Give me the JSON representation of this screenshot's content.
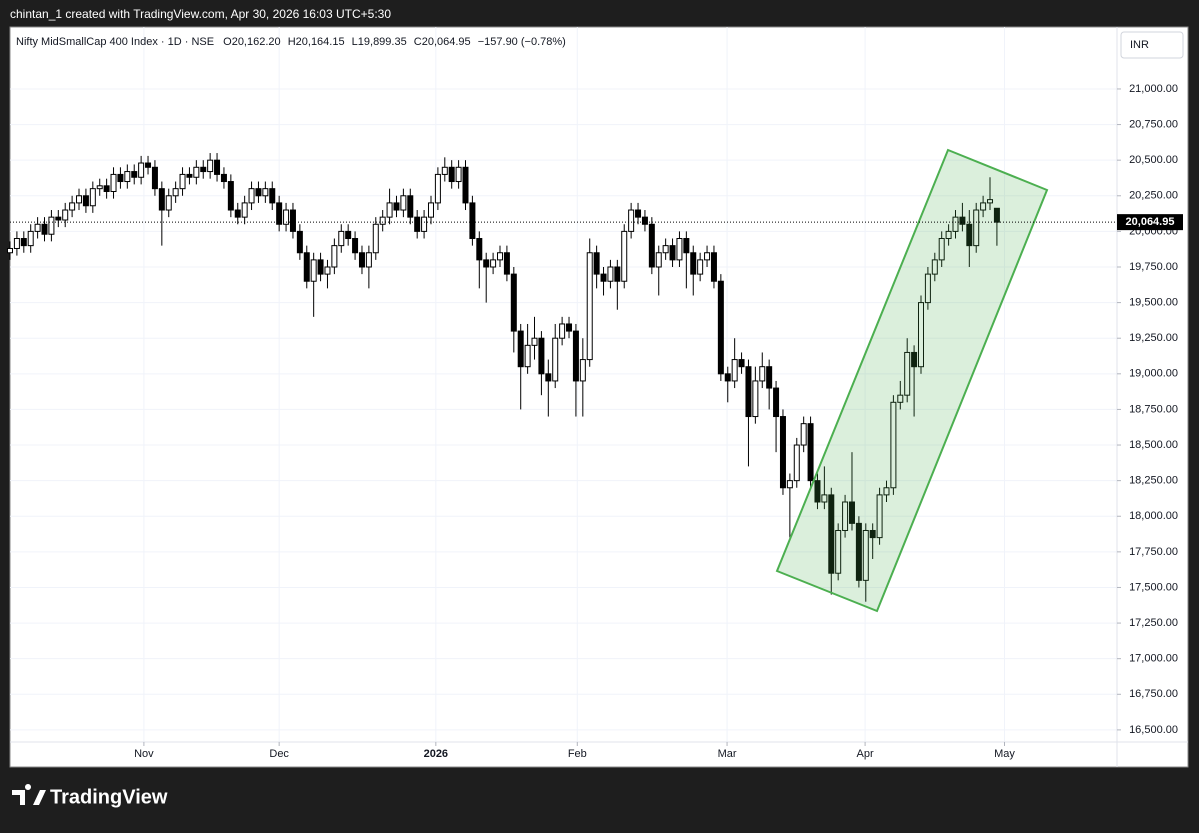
{
  "chart_data": {
    "type": "candlestick",
    "watermark": "chintan_1 created with TradingView.com, Apr 30, 2026 16:03 UTC+5:30",
    "brand": "TradingView",
    "currency": "INR",
    "header": {
      "symbol": "Nifty MidSmallCap 400 Index · 1D · NSE",
      "open": "O20,162.20",
      "high": "H20,164.15",
      "low": "L19,899.35",
      "close": "C20,064.95",
      "change": "−157.90 (−0.78%)"
    },
    "last_price": 20064.95,
    "last_price_label": "20,064.95",
    "up_color": "#ffffff",
    "down_color": "#000000",
    "border_color": "#000000",
    "channel_color": "#4caf50",
    "xlim": [
      0,
      160.4
    ],
    "xticks": [
      {
        "value": 19.4,
        "label": "Nov"
      },
      {
        "value": 39,
        "label": "Dec"
      },
      {
        "value": 61.7,
        "label": "2026"
      },
      {
        "value": 82.2,
        "label": "Feb"
      },
      {
        "value": 103.9,
        "label": "Mar"
      },
      {
        "value": 123.9,
        "label": "Apr"
      },
      {
        "value": 144.1,
        "label": "May"
      }
    ],
    "ylim": [
      16415,
      21435
    ],
    "yticks": [
      {
        "value": 16500,
        "label": "16,500.00"
      },
      {
        "value": 16750,
        "label": "16,750.00"
      },
      {
        "value": 17000,
        "label": "17,000.00"
      },
      {
        "value": 17250,
        "label": "17,250.00"
      },
      {
        "value": 17500,
        "label": "17,500.00"
      },
      {
        "value": 17750,
        "label": "17,750.00"
      },
      {
        "value": 18000,
        "label": "18,000.00"
      },
      {
        "value": 18250,
        "label": "18,250.00"
      },
      {
        "value": 18500,
        "label": "18,500.00"
      },
      {
        "value": 18750,
        "label": "18,750.00"
      },
      {
        "value": 19000,
        "label": "19,000.00"
      },
      {
        "value": 19250,
        "label": "19,250.00"
      },
      {
        "value": 19500,
        "label": "19,500.00"
      },
      {
        "value": 19750,
        "label": "19,750.00"
      },
      {
        "value": 20000,
        "label": "20,000.00"
      },
      {
        "value": 20250,
        "label": "20,250.00"
      },
      {
        "value": 20500,
        "label": "20,500.00"
      },
      {
        "value": 20750,
        "label": "20,750.00"
      },
      {
        "value": 21000,
        "label": "21,000.00"
      }
    ],
    "grid": true,
    "open": [
      19850,
      19880,
      19950,
      19900,
      20000,
      20050,
      19980,
      20100,
      20080,
      20150,
      20200,
      20250,
      20180,
      20300,
      20320,
      20280,
      20400,
      20350,
      20420,
      20380,
      20480,
      20450,
      20300,
      20150,
      20250,
      20300,
      20400,
      20380,
      20450,
      20420,
      20500,
      20400,
      20350,
      20150,
      20100,
      20200,
      20300,
      20250,
      20300,
      20200,
      20050,
      20150,
      20000,
      19850,
      19650,
      19800,
      19700,
      19750,
      19900,
      20000,
      19950,
      19850,
      19750,
      19850,
      20050,
      20100,
      20200,
      20150,
      20250,
      20100,
      20000,
      20100,
      20200,
      20400,
      20450,
      20350,
      20450,
      20200,
      19950,
      19800,
      19750,
      19800,
      19850,
      19700,
      19300,
      19050,
      19200,
      19250,
      19000,
      18950,
      19250,
      19350,
      19300,
      18950,
      19100,
      19850,
      19700,
      19650,
      19750,
      19650,
      20000,
      20150,
      20100,
      20050,
      19750,
      19850,
      19900,
      19800,
      19950,
      19850,
      19700,
      19800,
      19850,
      19650,
      19000,
      18950,
      19100,
      19050,
      18700,
      18950,
      19050,
      18900,
      18700,
      18200,
      18250,
      18500,
      18650,
      18250,
      18100,
      18150,
      17600,
      17900,
      18100,
      17950,
      17550,
      17900,
      17850,
      18150,
      18200,
      18800,
      18850,
      19150,
      19050,
      19500,
      19700,
      19800,
      19950,
      20000,
      20100,
      20050,
      19900,
      20150,
      20200,
      20162.2
    ],
    "high": [
      19930,
      20000,
      20000,
      20050,
      20100,
      20100,
      20150,
      20150,
      20200,
      20250,
      20300,
      20300,
      20350,
      20370,
      20370,
      20450,
      20450,
      20470,
      20470,
      20530,
      20530,
      20500,
      20350,
      20300,
      20350,
      20450,
      20450,
      20500,
      20500,
      20550,
      20550,
      20450,
      20400,
      20200,
      20250,
      20350,
      20350,
      20350,
      20350,
      20250,
      20200,
      20200,
      20050,
      19900,
      19850,
      19850,
      19800,
      19950,
      20050,
      20050,
      20000,
      19900,
      19900,
      20100,
      20150,
      20300,
      20250,
      20300,
      20300,
      20150,
      20150,
      20250,
      20450,
      20520,
      20500,
      20500,
      20500,
      20250,
      20000,
      19850,
      19850,
      19900,
      19900,
      19750,
      19350,
      19350,
      19400,
      19300,
      19100,
      19350,
      19400,
      19400,
      19350,
      19250,
      19950,
      19900,
      19750,
      19800,
      19800,
      20050,
      20200,
      20200,
      20150,
      20100,
      19900,
      19950,
      19950,
      20000,
      20000,
      19900,
      19850,
      19900,
      19900,
      19700,
      19050,
      19250,
      19150,
      19100,
      19050,
      19150,
      19100,
      18950,
      18750,
      18300,
      18550,
      18700,
      18700,
      18300,
      18350,
      18200,
      17950,
      18150,
      18450,
      18000,
      17950,
      17950,
      18200,
      18250,
      18850,
      18950,
      19250,
      19200,
      19550,
      19750,
      19850,
      20000,
      20050,
      20150,
      20200,
      20150,
      20200,
      20250,
      20380,
      20164.15
    ],
    "low": [
      19800,
      19830,
      19850,
      19850,
      19950,
      19930,
      19930,
      20030,
      20030,
      20100,
      20150,
      20130,
      20130,
      20250,
      20230,
      20230,
      20300,
      20300,
      20330,
      20330,
      20400,
      20250,
      19900,
      20100,
      20200,
      20250,
      20330,
      20330,
      20370,
      20370,
      20350,
      20300,
      20100,
      20050,
      20050,
      20150,
      20200,
      20200,
      20150,
      20000,
      20000,
      19950,
      19800,
      19600,
      19400,
      19650,
      19600,
      19700,
      19850,
      19900,
      19800,
      19700,
      19600,
      19800,
      20000,
      20050,
      20100,
      20100,
      20050,
      19950,
      19950,
      20050,
      20150,
      20350,
      20300,
      20300,
      20150,
      19900,
      19600,
      19500,
      19700,
      19750,
      19650,
      19150,
      18750,
      19000,
      19100,
      18850,
      18700,
      18900,
      19200,
      19250,
      18700,
      18700,
      19050,
      19600,
      19550,
      19600,
      19450,
      19600,
      19950,
      20050,
      20000,
      19700,
      19550,
      19800,
      19750,
      19750,
      19600,
      19550,
      19650,
      19750,
      19600,
      18950,
      18800,
      18900,
      19000,
      18350,
      18650,
      18900,
      18750,
      18450,
      18150,
      17850,
      18200,
      18450,
      18200,
      18050,
      18050,
      17450,
      17550,
      17850,
      17900,
      17500,
      17400,
      17700,
      17800,
      18100,
      18150,
      18750,
      18800,
      18700,
      19000,
      19450,
      19650,
      19750,
      19900,
      19950,
      20000,
      19750,
      19850,
      20100,
      20150,
      19899.35
    ],
    "close": [
      19880,
      19950,
      19900,
      20000,
      20050,
      19980,
      20100,
      20080,
      20150,
      20200,
      20250,
      20180,
      20300,
      20320,
      20280,
      20400,
      20350,
      20420,
      20380,
      20480,
      20450,
      20300,
      20150,
      20250,
      20300,
      20400,
      20380,
      20450,
      20420,
      20500,
      20400,
      20350,
      20150,
      20100,
      20200,
      20300,
      20250,
      20300,
      20200,
      20050,
      20150,
      20000,
      19850,
      19650,
      19800,
      19700,
      19750,
      19900,
      20000,
      19950,
      19850,
      19750,
      19850,
      20050,
      20100,
      20200,
      20150,
      20250,
      20100,
      20000,
      20100,
      20200,
      20400,
      20450,
      20350,
      20450,
      20200,
      19950,
      19800,
      19750,
      19800,
      19850,
      19700,
      19300,
      19050,
      19200,
      19250,
      19000,
      18950,
      19250,
      19350,
      19300,
      18950,
      19100,
      19850,
      19700,
      19650,
      19750,
      19650,
      20000,
      20150,
      20100,
      20050,
      19750,
      19850,
      19900,
      19800,
      19950,
      19850,
      19700,
      19800,
      19850,
      19650,
      19000,
      18950,
      19100,
      19050,
      18700,
      18950,
      19050,
      18900,
      18700,
      18200,
      18250,
      18500,
      18650,
      18250,
      18100,
      18150,
      17600,
      17900,
      18100,
      17950,
      17550,
      17900,
      17850,
      18150,
      18200,
      18800,
      18850,
      19150,
      19050,
      19500,
      19700,
      19800,
      19950,
      20000,
      20100,
      20050,
      19900,
      20150,
      20200,
      20222.85,
      20064.95
    ]
  }
}
